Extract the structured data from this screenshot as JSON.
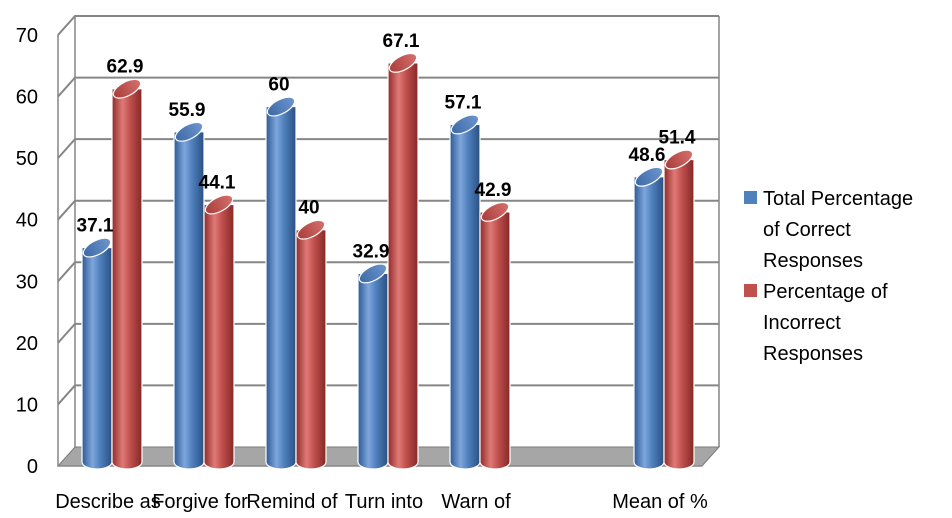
{
  "chart_data": {
    "type": "bar",
    "style": "3d-cylinder",
    "categories": [
      "Describe as",
      "Forgive for",
      "Remind of",
      "Turn into",
      "Warn of",
      "",
      "Mean of %"
    ],
    "series": [
      {
        "name": "Total Percentage of Correct Responses",
        "values": [
          37.1,
          55.9,
          60,
          32.9,
          57.1,
          null,
          48.6
        ],
        "color": "#4F81BD"
      },
      {
        "name": "Percentage of Incorrect Responses",
        "values": [
          62.9,
          44.1,
          40,
          67.1,
          42.9,
          null,
          51.4
        ],
        "color": "#C0504D"
      }
    ],
    "data_labels": [
      [
        "37.1",
        "55.9",
        "60",
        "32.9",
        "57.1",
        "",
        "48.6"
      ],
      [
        "62.9",
        "44.1",
        "40",
        "67.1",
        "42.9",
        "",
        "51.4"
      ]
    ],
    "yticks": [
      0,
      10,
      20,
      30,
      40,
      50,
      60,
      70
    ],
    "ylim": [
      0,
      70
    ],
    "grid": true,
    "legend_position": "right",
    "legend_lines": [
      [
        "Total Percentage",
        "of Correct",
        "Responses"
      ],
      [
        "Percentage of",
        "Incorrect",
        "Responses"
      ]
    ]
  }
}
